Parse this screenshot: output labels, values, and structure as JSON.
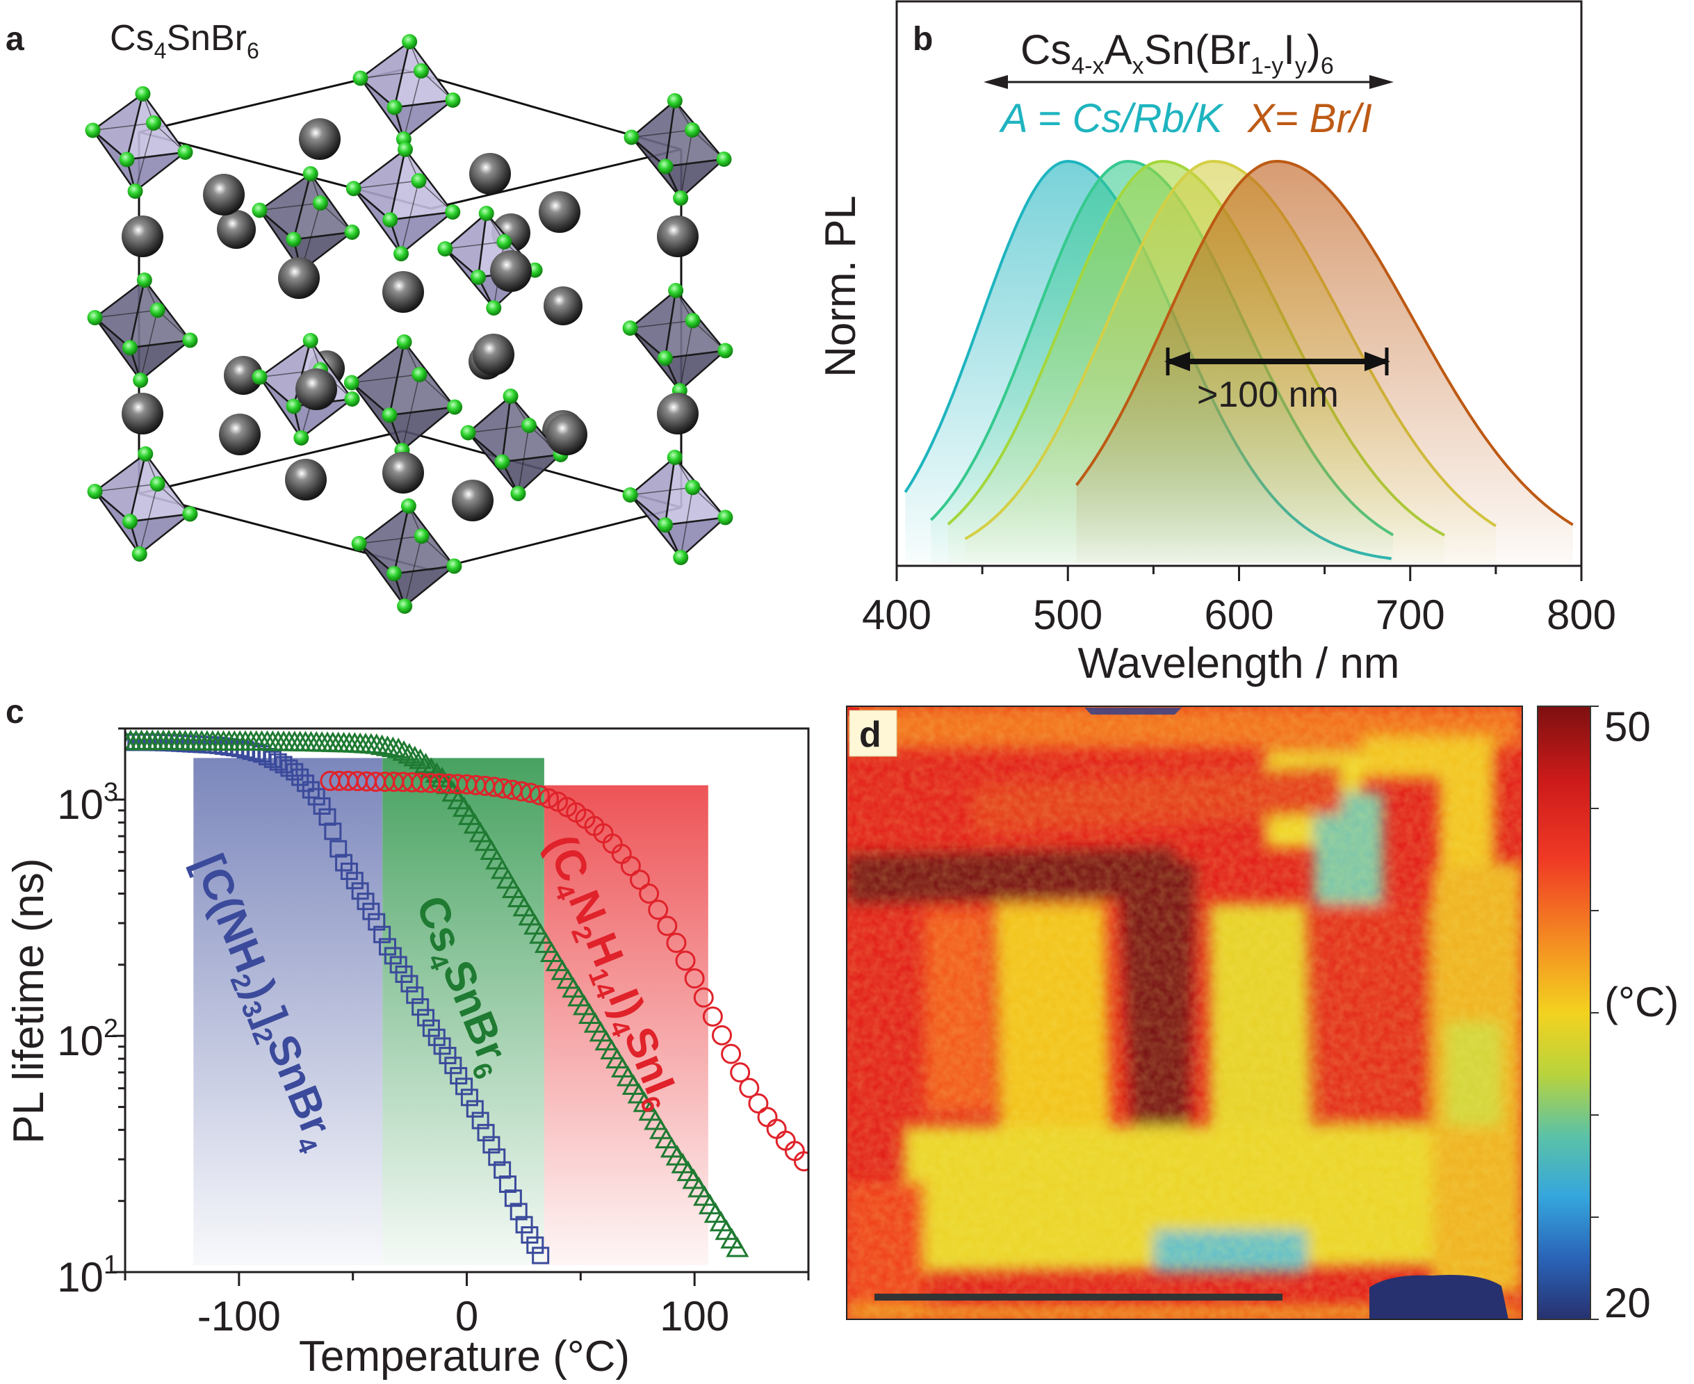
{
  "colors": {
    "axis": "#231f20",
    "cyan": "#1eb4bf",
    "orange_brown": "#bd5a14",
    "blue_series": "#3b4a9b",
    "green_series": "#1f7a32",
    "red_series": "#e0222a",
    "halide_green": "#2cd22c",
    "cs_atom": "#3a3a3a",
    "octahedron": "#5f5d75"
  },
  "panel_a": {
    "letter": "a",
    "formula": {
      "base1": "Cs",
      "sub1": "4",
      "base2": "SnBr",
      "sub2": "6"
    }
  },
  "panel_b": {
    "letter": "b",
    "formula": {
      "p1": "Cs",
      "s1": "4-x",
      "p2": "A",
      "s2": "x",
      "p3": "Sn(Br",
      "s3": "1-y",
      "p4": "I",
      "s4": "y",
      "p5": ")",
      "s5": "6"
    },
    "cation_label": "A = Cs/Rb/K",
    "anion_label": "X= Br/I",
    "range_annotation": ">100 nm",
    "chart_data": {
      "type": "area",
      "xlabel": "Wavelength / nm",
      "ylabel": "Norm. PL",
      "xlim": [
        400,
        800
      ],
      "xticks": [
        400,
        500,
        600,
        700,
        800
      ],
      "yticks": [],
      "grid": false,
      "legend": "none",
      "series": [
        {
          "color": "#1eb4bf",
          "peak_nm": 500,
          "peak_value": 1.0,
          "range_nm": [
            405,
            690
          ]
        },
        {
          "color": "#35c98e",
          "peak_nm": 535,
          "peak_value": 1.0,
          "range_nm": [
            420,
            690
          ]
        },
        {
          "color": "#a4d63c",
          "peak_nm": 555,
          "peak_value": 1.0,
          "range_nm": [
            430,
            720
          ]
        },
        {
          "color": "#d4cf45",
          "peak_nm": 585,
          "peak_value": 1.0,
          "range_nm": [
            440,
            750
          ]
        },
        {
          "color": "#bd5a14",
          "peak_nm": 622,
          "peak_value": 1.0,
          "range_nm": [
            505,
            795
          ]
        }
      ],
      "annotation_range_nm": [
        557,
        688
      ]
    }
  },
  "panel_c": {
    "letter": "c",
    "labels": {
      "blue": {
        "a": "[C(NH",
        "b": "2",
        "c": ")",
        "d": "3",
        "e": "]",
        "f": "2",
        "g": "SnBr",
        "h": "4"
      },
      "green": {
        "a": "Cs",
        "b": "4",
        "c": "SnBr",
        "d": "6"
      },
      "red": {
        "a": "(C",
        "b": "4",
        "c": "N",
        "d": "2",
        "e": "H",
        "f": "14",
        "g": "I)",
        "h": "4",
        "i": "SnI",
        "j": "6"
      }
    },
    "y_tick_labels": [
      {
        "base": "10",
        "exp": "1"
      },
      {
        "base": "10",
        "exp": "2"
      },
      {
        "base": "10",
        "exp": "3"
      }
    ],
    "chart_data": {
      "type": "scatter",
      "xlabel": "Temperature (°C)",
      "ylabel": "PL lifetime (ns)",
      "xlim": [
        -150,
        150
      ],
      "ylim": [
        10,
        2000
      ],
      "yscale": "log",
      "xticks": [
        -100,
        0,
        100
      ],
      "grid": false,
      "legend": "none",
      "series": [
        {
          "marker": "square",
          "color": "#3b4a9b",
          "x": [
            -150,
            -140,
            -130,
            -120,
            -110,
            -100,
            -90,
            -80,
            -75,
            -70,
            -65,
            -60,
            -55,
            -50,
            -45,
            -40,
            -35,
            -30,
            -25,
            -20,
            -15,
            -10,
            -5,
            0,
            5,
            10,
            15,
            20,
            25,
            30,
            34
          ],
          "y": [
            1750,
            1750,
            1740,
            1720,
            1700,
            1650,
            1560,
            1400,
            1300,
            1150,
            1000,
            800,
            560,
            470,
            380,
            310,
            240,
            200,
            165,
            130,
            105,
            88,
            72,
            58,
            46,
            36,
            28,
            21,
            16,
            13,
            11
          ],
          "shaded_band": [
            -120,
            -37
          ]
        },
        {
          "marker": "triangle",
          "color": "#1f7a32",
          "x": [
            -150,
            -130,
            -110,
            -90,
            -70,
            -60,
            -50,
            -40,
            -30,
            -20,
            -10,
            0,
            10,
            20,
            30,
            40,
            50,
            60,
            70,
            80,
            90,
            100,
            110,
            120
          ],
          "y": [
            1750,
            1750,
            1740,
            1740,
            1730,
            1720,
            1710,
            1690,
            1620,
            1450,
            1200,
            880,
            620,
            420,
            290,
            200,
            140,
            98,
            68,
            48,
            33,
            24,
            17,
            12
          ],
          "shaded_band": [
            -37,
            34
          ]
        },
        {
          "marker": "circle",
          "color": "#e0222a",
          "x": [
            -60,
            -50,
            -40,
            -30,
            -20,
            -10,
            0,
            10,
            20,
            30,
            40,
            50,
            60,
            70,
            80,
            90,
            100,
            110,
            120,
            130,
            140,
            150
          ],
          "y": [
            1200,
            1200,
            1190,
            1190,
            1180,
            1170,
            1160,
            1140,
            1100,
            1060,
            980,
            860,
            720,
            560,
            400,
            270,
            175,
            110,
            70,
            48,
            36,
            28
          ],
          "shaded_band": [
            34,
            106
          ]
        }
      ]
    }
  },
  "panel_d": {
    "letter": "d",
    "colorbar": {
      "max_label": "50",
      "min_label": "20",
      "unit_label": "(°C)",
      "min": 20,
      "max": 50
    },
    "scale_bar": true,
    "chart_data": {
      "type": "heatmap",
      "quantity": "temperature",
      "range": [
        20,
        50
      ]
    }
  }
}
